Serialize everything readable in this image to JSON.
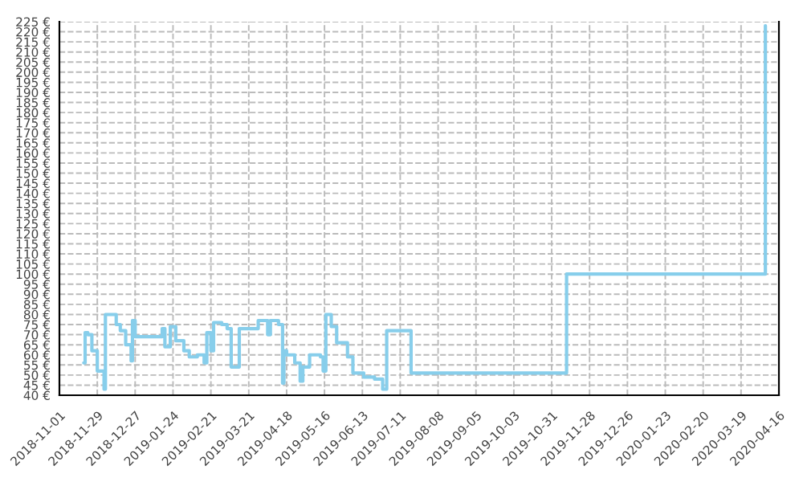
{
  "chart_data": {
    "type": "step",
    "x": [
      "2018-11-19",
      "2018-11-20",
      "2018-11-22",
      "2018-11-25",
      "2018-11-29",
      "2018-12-04",
      "2018-12-05",
      "2018-12-13",
      "2018-12-16",
      "2018-12-20",
      "2018-12-24",
      "2018-12-25",
      "2018-12-27",
      "2019-01-16",
      "2019-01-18",
      "2019-01-22",
      "2019-01-26",
      "2019-02-01",
      "2019-02-05",
      "2019-02-11",
      "2019-02-16",
      "2019-02-18",
      "2019-02-21",
      "2019-02-23",
      "2019-03-01",
      "2019-03-05",
      "2019-03-08",
      "2019-03-14",
      "2019-03-28",
      "2019-04-04",
      "2019-04-06",
      "2019-04-12",
      "2019-04-15",
      "2019-04-16",
      "2019-04-18",
      "2019-04-24",
      "2019-04-28",
      "2019-04-30",
      "2019-05-05",
      "2019-05-13",
      "2019-05-15",
      "2019-05-17",
      "2019-05-21",
      "2019-05-25",
      "2019-06-02",
      "2019-06-06",
      "2019-06-14",
      "2019-06-22",
      "2019-06-28",
      "2019-07-01",
      "2019-07-19",
      "2019-11-11",
      "2020-04-06"
    ],
    "series": [
      {
        "color": "#87ceeb",
        "values": [
          56,
          71,
          70,
          62,
          52,
          43,
          80,
          75,
          72,
          65,
          57,
          77,
          69,
          73,
          64,
          74,
          67,
          62,
          59,
          60,
          56,
          71,
          62,
          76,
          75,
          73,
          54,
          73,
          77,
          70,
          77,
          75,
          46,
          62,
          60,
          56,
          47,
          54,
          60,
          59,
          52,
          80,
          74,
          66,
          59,
          51,
          49,
          48,
          43,
          72,
          51,
          100,
          223
        ]
      }
    ],
    "xlim": [
      "2018-11-01",
      "2020-04-16"
    ],
    "xticks": [
      "2018-11-01",
      "2018-11-29",
      "2018-12-27",
      "2019-01-24",
      "2019-02-21",
      "2019-03-21",
      "2019-04-18",
      "2019-05-16",
      "2019-06-13",
      "2019-07-11",
      "2019-08-08",
      "2019-09-05",
      "2019-10-03",
      "2019-10-31",
      "2019-11-28",
      "2019-12-26",
      "2020-01-23",
      "2020-02-20",
      "2020-03-19",
      "2020-04-16"
    ],
    "ylim": [
      40,
      225
    ],
    "yticks": [
      {
        "value": 40,
        "label": "40 €"
      },
      {
        "value": 45,
        "label": "45 €"
      },
      {
        "value": 50,
        "label": "50 €"
      },
      {
        "value": 55,
        "label": "55 €"
      },
      {
        "value": 60,
        "label": "60 €"
      },
      {
        "value": 65,
        "label": "65 €"
      },
      {
        "value": 70,
        "label": "70 €"
      },
      {
        "value": 75,
        "label": "75 €"
      },
      {
        "value": 80,
        "label": "80 €"
      },
      {
        "value": 85,
        "label": "85 €"
      },
      {
        "value": 90,
        "label": "90 €"
      },
      {
        "value": 95,
        "label": "95 €"
      },
      {
        "value": 100,
        "label": "100 €"
      },
      {
        "value": 105,
        "label": "105 €"
      },
      {
        "value": 110,
        "label": "110 €"
      },
      {
        "value": 115,
        "label": "115 €"
      },
      {
        "value": 120,
        "label": "120 €"
      },
      {
        "value": 125,
        "label": "125 €"
      },
      {
        "value": 130,
        "label": "130 €"
      },
      {
        "value": 135,
        "label": "135 €"
      },
      {
        "value": 140,
        "label": "140 €"
      },
      {
        "value": 145,
        "label": "145 €"
      },
      {
        "value": 150,
        "label": "150 €"
      },
      {
        "value": 155,
        "label": "155 €"
      },
      {
        "value": 160,
        "label": "160 €"
      },
      {
        "value": 165,
        "label": "165 €"
      },
      {
        "value": 170,
        "label": "170 €"
      },
      {
        "value": 175,
        "label": "175 €"
      },
      {
        "value": 180,
        "label": "180 €"
      },
      {
        "value": 185,
        "label": "185 €"
      },
      {
        "value": 190,
        "label": "190 €"
      },
      {
        "value": 195,
        "label": "195 €"
      },
      {
        "value": 200,
        "label": "200 €"
      },
      {
        "value": 205,
        "label": "205 €"
      },
      {
        "value": 210,
        "label": "210 €"
      },
      {
        "value": 215,
        "label": "215 €"
      },
      {
        "value": 220,
        "label": "220 €"
      },
      {
        "value": 225,
        "label": "225 €"
      }
    ],
    "grid": true,
    "legend": false,
    "line_style": "solid",
    "marker": "none"
  }
}
